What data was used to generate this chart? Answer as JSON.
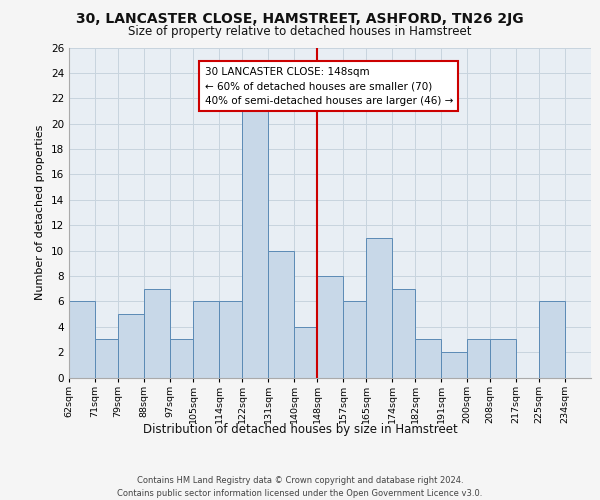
{
  "title": "30, LANCASTER CLOSE, HAMSTREET, ASHFORD, TN26 2JG",
  "subtitle": "Size of property relative to detached houses in Hamstreet",
  "xlabel": "Distribution of detached houses by size in Hamstreet",
  "ylabel": "Number of detached properties",
  "bin_labels": [
    "62sqm",
    "71sqm",
    "79sqm",
    "88sqm",
    "97sqm",
    "105sqm",
    "114sqm",
    "122sqm",
    "131sqm",
    "140sqm",
    "148sqm",
    "157sqm",
    "165sqm",
    "174sqm",
    "182sqm",
    "191sqm",
    "200sqm",
    "208sqm",
    "217sqm",
    "225sqm",
    "234sqm"
  ],
  "bin_edges": [
    62,
    71,
    79,
    88,
    97,
    105,
    114,
    122,
    131,
    140,
    148,
    157,
    165,
    174,
    182,
    191,
    200,
    208,
    217,
    225,
    234
  ],
  "counts": [
    6,
    3,
    5,
    7,
    3,
    6,
    6,
    21,
    10,
    4,
    8,
    6,
    11,
    7,
    3,
    2,
    3,
    3,
    0,
    6
  ],
  "bar_color": "#c8d8e8",
  "bar_edge_color": "#5b8ab5",
  "property_size": 148,
  "vline_color": "#cc0000",
  "annotation_line1": "30 LANCASTER CLOSE: 148sqm",
  "annotation_line2": "← 60% of detached houses are smaller (70)",
  "annotation_line3": "40% of semi-detached houses are larger (46) →",
  "annotation_box_color": "#ffffff",
  "annotation_box_edge_color": "#cc0000",
  "ylim": [
    0,
    26
  ],
  "yticks": [
    0,
    2,
    4,
    6,
    8,
    10,
    12,
    14,
    16,
    18,
    20,
    22,
    24,
    26
  ],
  "grid_color": "#c8d4de",
  "bg_color": "#e8eef4",
  "fig_bg_color": "#f5f5f5",
  "footer": "Contains HM Land Registry data © Crown copyright and database right 2024.\nContains public sector information licensed under the Open Government Licence v3.0."
}
